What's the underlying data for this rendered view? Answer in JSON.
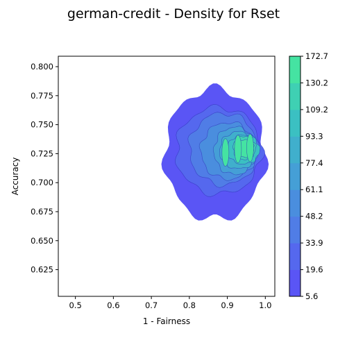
{
  "chart_data": {
    "type": "density-contour",
    "title": "german-credit - Density for Rset",
    "xlabel": "1 - Fairness",
    "ylabel": "Accuracy",
    "xlim": [
      0.455,
      1.025
    ],
    "ylim": [
      0.602,
      0.809
    ],
    "x_ticks": [
      "0.5",
      "0.6",
      "0.7",
      "0.8",
      "0.9",
      "1.0"
    ],
    "x_tick_values": [
      0.5,
      0.6,
      0.7,
      0.8,
      0.9,
      1.0
    ],
    "y_ticks": [
      "0.625",
      "0.650",
      "0.675",
      "0.700",
      "0.725",
      "0.750",
      "0.775",
      "0.800"
    ],
    "y_tick_values": [
      0.625,
      0.65,
      0.675,
      0.7,
      0.725,
      0.75,
      0.775,
      0.8
    ],
    "grid": false,
    "colorbar": {
      "position": "right",
      "levels": [
        5.6,
        19.6,
        33.9,
        48.2,
        61.1,
        77.4,
        93.3,
        109.2,
        130.2,
        172.7
      ],
      "labels": [
        "5.6",
        "19.6",
        "33.9",
        "48.2",
        "61.1",
        "77.4",
        "93.3",
        "109.2",
        "130.2",
        "172.7"
      ],
      "colors": [
        "#5a55f5",
        "#5568ee",
        "#507de6",
        "#4a8ede",
        "#459fd6",
        "#40afcc",
        "#3bc0c2",
        "#3fd0b3",
        "#45e3a2"
      ]
    },
    "density_regions": [
      {
        "level": 5.6,
        "shape": "blob",
        "x_range": [
          0.735,
          1.0
        ],
        "y_range": [
          0.668,
          0.781
        ]
      },
      {
        "level": 19.6,
        "shape": "blob",
        "x_range": [
          0.765,
          0.99
        ],
        "y_range": [
          0.69,
          0.765
        ]
      },
      {
        "level": 33.9,
        "shape": "blob",
        "x_range": [
          0.8,
          0.98
        ],
        "y_range": [
          0.698,
          0.76
        ]
      },
      {
        "level": 48.2,
        "shape": "blob",
        "x_range": [
          0.83,
          0.975
        ],
        "y_range": [
          0.703,
          0.752
        ]
      },
      {
        "level": 61.1,
        "shape": "blob",
        "x_range": [
          0.865,
          0.975
        ],
        "y_range": [
          0.707,
          0.748
        ]
      },
      {
        "level": 77.4,
        "shape": "blob",
        "x_range": [
          0.88,
          0.98
        ],
        "y_range": [
          0.712,
          0.744
        ]
      },
      {
        "level": 93.3,
        "shape": "blob",
        "x_range": [
          0.9,
          0.985
        ],
        "y_range": [
          0.716,
          0.741
        ]
      },
      {
        "level": 109.2,
        "shape": "blob",
        "x_range": [
          0.915,
          0.975
        ],
        "y_range": [
          0.72,
          0.74
        ]
      },
      {
        "level": 130.2,
        "shape": "blob",
        "x_range": [
          0.92,
          0.97
        ],
        "y_range": [
          0.722,
          0.737
        ]
      }
    ],
    "density_peaks": [
      {
        "x": 0.895,
        "y": 0.726
      },
      {
        "x": 0.928,
        "y": 0.729
      },
      {
        "x": 0.96,
        "y": 0.73
      }
    ]
  }
}
